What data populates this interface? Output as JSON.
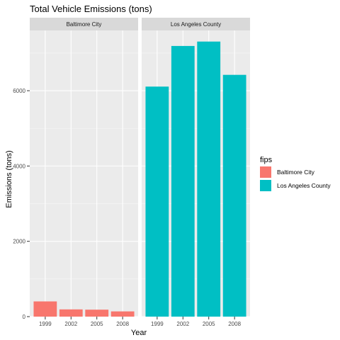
{
  "chart_data": {
    "type": "bar",
    "title": "Total Vehicle Emissions (tons)",
    "xlabel": "Year",
    "ylabel": "Emissions (tons)",
    "ylim": [
      0,
      7600
    ],
    "yticks": [
      0,
      2000,
      4000,
      6000
    ],
    "grid": true,
    "legend": {
      "title": "fips",
      "position": "right"
    },
    "categories": [
      "1999",
      "2002",
      "2005",
      "2008"
    ],
    "panels": [
      {
        "name": "Baltimore City",
        "color": "#F8766D",
        "values": [
          404,
          192,
          185,
          139
        ]
      },
      {
        "name": "Los Angeles County",
        "color": "#00BFC4",
        "values": [
          6109,
          7188,
          7305,
          6421
        ]
      }
    ]
  }
}
